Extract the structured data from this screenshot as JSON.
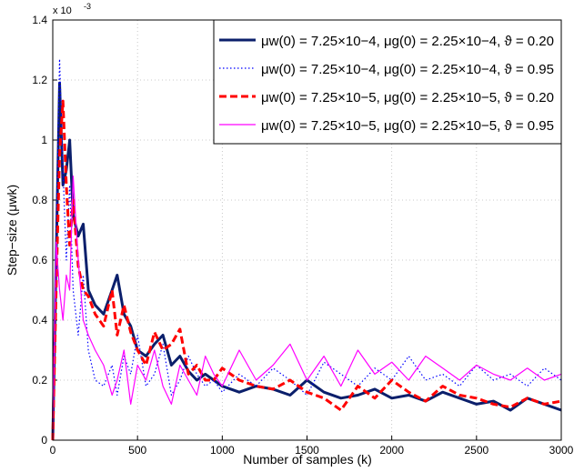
{
  "chart_data": {
    "type": "line",
    "xlabel": "Number of samples (k)",
    "ylabel": "Step−size (μwk)",
    "y_multiplier": "x 10",
    "y_multiplier_exponent": "-3",
    "x": [
      0,
      20,
      40,
      60,
      80,
      100,
      120,
      150,
      180,
      210,
      250,
      300,
      350,
      380,
      420,
      460,
      500,
      550,
      600,
      650,
      700,
      750,
      800,
      850,
      900,
      950,
      1000,
      1100,
      1200,
      1300,
      1400,
      1500,
      1600,
      1700,
      1800,
      1900,
      2000,
      2100,
      2200,
      2300,
      2400,
      2500,
      2600,
      2700,
      2800,
      2900,
      3000
    ],
    "series": [
      {
        "name": "μw(0) = 7.25×10−4, μg(0) = 2.25×10−4, ϑ = 0.20",
        "color": "#0b1f6b",
        "style": "solid",
        "width": 3,
        "values": [
          0,
          0.6,
          1.19,
          0.85,
          0.9,
          1.0,
          0.75,
          0.68,
          0.72,
          0.5,
          0.45,
          0.42,
          0.5,
          0.55,
          0.42,
          0.38,
          0.3,
          0.28,
          0.32,
          0.35,
          0.25,
          0.28,
          0.23,
          0.2,
          0.22,
          0.2,
          0.18,
          0.16,
          0.18,
          0.17,
          0.15,
          0.2,
          0.16,
          0.14,
          0.15,
          0.17,
          0.14,
          0.15,
          0.13,
          0.16,
          0.14,
          0.12,
          0.13,
          0.1,
          0.14,
          0.12,
          0.1
        ]
      },
      {
        "name": "μw(0) = 7.25×10−4, μg(0) = 2.25×10−4, ϑ = 0.95",
        "color": "#0000ff",
        "style": "dotted",
        "width": 1.2,
        "values": [
          0,
          0.7,
          1.27,
          0.9,
          0.6,
          0.85,
          0.5,
          0.35,
          0.55,
          0.3,
          0.2,
          0.18,
          0.25,
          0.15,
          0.28,
          0.22,
          0.35,
          0.18,
          0.22,
          0.32,
          0.15,
          0.2,
          0.28,
          0.22,
          0.18,
          0.2,
          0.16,
          0.22,
          0.18,
          0.24,
          0.2,
          0.15,
          0.26,
          0.22,
          0.18,
          0.24,
          0.2,
          0.28,
          0.2,
          0.22,
          0.18,
          0.25,
          0.2,
          0.22,
          0.18,
          0.24,
          0.2
        ]
      },
      {
        "name": "μw(0) = 7.25×10−5, μg(0) = 2.25×10−5, ϑ = 0.20",
        "color": "#ff0000",
        "style": "dashed",
        "width": 3,
        "values": [
          0,
          0.5,
          0.95,
          1.13,
          0.85,
          0.65,
          0.8,
          0.58,
          0.5,
          0.48,
          0.42,
          0.38,
          0.5,
          0.35,
          0.45,
          0.36,
          0.3,
          0.25,
          0.36,
          0.3,
          0.32,
          0.37,
          0.22,
          0.25,
          0.2,
          0.2,
          0.24,
          0.2,
          0.18,
          0.17,
          0.2,
          0.16,
          0.14,
          0.1,
          0.18,
          0.14,
          0.2,
          0.16,
          0.13,
          0.18,
          0.15,
          0.14,
          0.12,
          0.11,
          0.14,
          0.12,
          0.13
        ]
      },
      {
        "name": "μw(0) = 7.25×10−5, μg(0) = 2.25×10−5, ϑ = 0.95",
        "color": "#ff00ff",
        "style": "solid",
        "width": 1.2,
        "values": [
          0,
          0.66,
          0.5,
          0.4,
          0.55,
          0.5,
          0.88,
          0.6,
          0.4,
          0.35,
          0.3,
          0.25,
          0.15,
          0.2,
          0.3,
          0.12,
          0.25,
          0.2,
          0.3,
          0.18,
          0.12,
          0.25,
          0.2,
          0.15,
          0.28,
          0.22,
          0.18,
          0.3,
          0.2,
          0.25,
          0.32,
          0.2,
          0.28,
          0.18,
          0.3,
          0.22,
          0.26,
          0.2,
          0.28,
          0.24,
          0.2,
          0.25,
          0.22,
          0.2,
          0.24,
          0.2,
          0.22
        ]
      }
    ],
    "xlim": [
      0,
      3000
    ],
    "xticks": [
      0,
      500,
      1000,
      1500,
      2000,
      2500,
      3000
    ],
    "ylim": [
      0,
      1.4
    ],
    "yticks": [
      0,
      0.2,
      0.4,
      0.6,
      0.8,
      1,
      1.2,
      1.4
    ],
    "grid": true,
    "legend": "top-right"
  }
}
